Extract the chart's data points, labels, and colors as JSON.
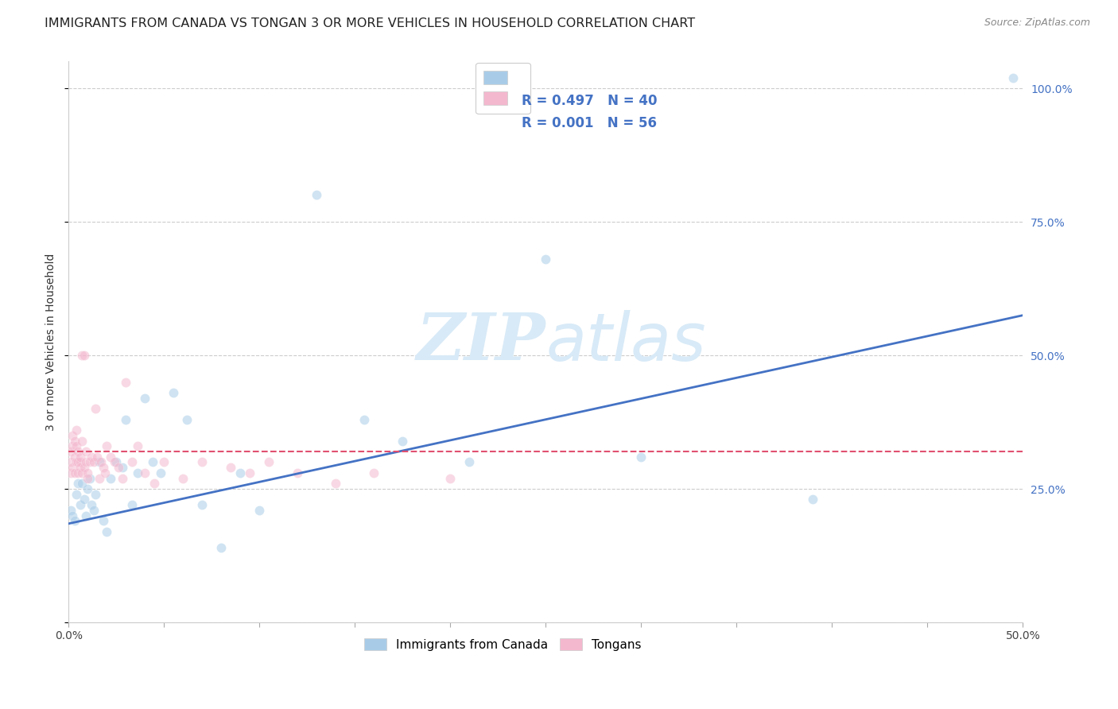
{
  "title": "IMMIGRANTS FROM CANADA VS TONGAN 3 OR MORE VEHICLES IN HOUSEHOLD CORRELATION CHART",
  "source": "Source: ZipAtlas.com",
  "ylabel": "3 or more Vehicles in Household",
  "xlim": [
    0.0,
    0.5
  ],
  "ylim": [
    0.0,
    1.05
  ],
  "yticks": [
    0.0,
    0.25,
    0.5,
    0.75,
    1.0
  ],
  "ytick_labels_right": [
    "",
    "25.0%",
    "50.0%",
    "75.0%",
    "100.0%"
  ],
  "xtick_positions": [
    0.0,
    0.05,
    0.1,
    0.15,
    0.2,
    0.25,
    0.3,
    0.35,
    0.4,
    0.45,
    0.5
  ],
  "xtick_labels_shown": {
    "0.0": "0.0%",
    "0.5": "50.0%"
  },
  "legend_entries": [
    {
      "label": "Immigrants from Canada",
      "R": "0.497",
      "N": "40",
      "color": "#a8cce8"
    },
    {
      "label": "Tongans",
      "R": "0.001",
      "N": "56",
      "color": "#f4b8ce"
    }
  ],
  "blue_scatter_x": [
    0.001,
    0.002,
    0.003,
    0.004,
    0.005,
    0.006,
    0.007,
    0.008,
    0.009,
    0.01,
    0.011,
    0.012,
    0.013,
    0.014,
    0.016,
    0.018,
    0.02,
    0.022,
    0.025,
    0.028,
    0.03,
    0.033,
    0.036,
    0.04,
    0.044,
    0.048,
    0.055,
    0.062,
    0.07,
    0.08,
    0.09,
    0.1,
    0.13,
    0.155,
    0.175,
    0.21,
    0.25,
    0.3,
    0.39,
    0.495
  ],
  "blue_scatter_y": [
    0.21,
    0.2,
    0.19,
    0.24,
    0.26,
    0.22,
    0.26,
    0.23,
    0.2,
    0.25,
    0.27,
    0.22,
    0.21,
    0.24,
    0.3,
    0.19,
    0.17,
    0.27,
    0.3,
    0.29,
    0.38,
    0.22,
    0.28,
    0.42,
    0.3,
    0.28,
    0.43,
    0.38,
    0.22,
    0.14,
    0.28,
    0.21,
    0.8,
    0.38,
    0.34,
    0.3,
    0.68,
    0.31,
    0.23,
    1.02
  ],
  "pink_scatter_x": [
    0.001,
    0.001,
    0.001,
    0.002,
    0.002,
    0.002,
    0.003,
    0.003,
    0.003,
    0.004,
    0.004,
    0.004,
    0.005,
    0.005,
    0.005,
    0.006,
    0.006,
    0.006,
    0.007,
    0.007,
    0.007,
    0.008,
    0.008,
    0.009,
    0.009,
    0.01,
    0.01,
    0.011,
    0.012,
    0.013,
    0.014,
    0.015,
    0.016,
    0.017,
    0.018,
    0.019,
    0.02,
    0.022,
    0.024,
    0.026,
    0.028,
    0.03,
    0.033,
    0.036,
    0.04,
    0.045,
    0.05,
    0.06,
    0.07,
    0.085,
    0.095,
    0.105,
    0.12,
    0.14,
    0.16,
    0.2
  ],
  "pink_scatter_y": [
    0.3,
    0.32,
    0.28,
    0.35,
    0.33,
    0.29,
    0.31,
    0.34,
    0.28,
    0.33,
    0.3,
    0.36,
    0.3,
    0.28,
    0.32,
    0.3,
    0.29,
    0.31,
    0.34,
    0.28,
    0.5,
    0.5,
    0.29,
    0.32,
    0.3,
    0.28,
    0.27,
    0.3,
    0.31,
    0.3,
    0.4,
    0.31,
    0.27,
    0.3,
    0.29,
    0.28,
    0.33,
    0.31,
    0.3,
    0.29,
    0.27,
    0.45,
    0.3,
    0.33,
    0.28,
    0.26,
    0.3,
    0.27,
    0.3,
    0.29,
    0.28,
    0.3,
    0.28,
    0.26,
    0.28,
    0.27
  ],
  "blue_line_x": [
    0.0,
    0.5
  ],
  "blue_line_y": [
    0.185,
    0.575
  ],
  "pink_line_x": [
    0.0,
    0.5
  ],
  "pink_line_y": [
    0.32,
    0.32
  ],
  "scatter_alpha": 0.55,
  "scatter_size": 75,
  "bg_color": "#ffffff",
  "grid_color": "#cccccc",
  "blue_color": "#a8cce8",
  "pink_color": "#f4b8ce",
  "blue_line_color": "#4472c4",
  "pink_line_color": "#e05070",
  "right_axis_color": "#4472c4",
  "title_fontsize": 11.5,
  "axis_label_fontsize": 10,
  "tick_fontsize": 10,
  "legend_fontsize": 12,
  "watermark_zip": "ZIP",
  "watermark_atlas": "atlas",
  "watermark_color": "#d8eaf7",
  "watermark_fontsize": 60
}
